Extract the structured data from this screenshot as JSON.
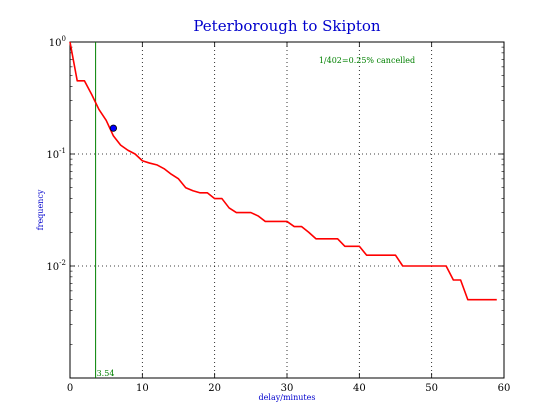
{
  "chart_data": {
    "type": "line",
    "title": "Peterborough to Skipton",
    "xlabel": "delay/minutes",
    "ylabel": "frequency",
    "xlim": [
      0,
      60
    ],
    "ylim": [
      0.001,
      1
    ],
    "yscale": "log",
    "grid": true,
    "x_ticks": [
      0,
      10,
      20,
      30,
      40,
      50,
      60
    ],
    "x_tick_labels": [
      "0",
      "10",
      "20",
      "30",
      "40",
      "50",
      "60"
    ],
    "y_tick_labels": [
      {
        "base": "10",
        "exp": "0",
        "value": 1
      },
      {
        "base": "10",
        "exp": "-1",
        "value": 0.1
      },
      {
        "base": "10",
        "exp": "-2",
        "value": 0.01
      }
    ],
    "series": [
      {
        "color": "#ff0000",
        "x": [
          0,
          1,
          2,
          3,
          4,
          5,
          6,
          7,
          8,
          9,
          10,
          11,
          12,
          13,
          14,
          15,
          16,
          17,
          18,
          19,
          20,
          21,
          22,
          23,
          24,
          25,
          26,
          27,
          28,
          29,
          30,
          31,
          32,
          33,
          34,
          35,
          36,
          37,
          38,
          39,
          40,
          41,
          42,
          43,
          44,
          45,
          46,
          47,
          48,
          49,
          50,
          51,
          52,
          53,
          54,
          55,
          56,
          57,
          58,
          59
        ],
        "y": [
          1.0,
          0.45,
          0.45,
          0.34,
          0.25,
          0.2,
          0.145,
          0.12,
          0.108,
          0.1,
          0.087,
          0.083,
          0.08,
          0.074,
          0.066,
          0.06,
          0.05,
          0.047,
          0.045,
          0.045,
          0.04,
          0.04,
          0.033,
          0.03,
          0.03,
          0.03,
          0.028,
          0.025,
          0.025,
          0.025,
          0.025,
          0.0225,
          0.0225,
          0.02,
          0.0175,
          0.0175,
          0.0175,
          0.0175,
          0.015,
          0.015,
          0.015,
          0.0125,
          0.0125,
          0.0125,
          0.0125,
          0.0125,
          0.01,
          0.01,
          0.01,
          0.01,
          0.01,
          0.01,
          0.01,
          0.0075,
          0.0075,
          0.005,
          0.005,
          0.005,
          0.005,
          0.005
        ]
      }
    ],
    "marker_point": {
      "x": 6,
      "y": 0.17,
      "color": "#0000ff"
    },
    "vline": {
      "x": 3.54,
      "label": "3.54",
      "color": "#008000"
    },
    "annotation": {
      "text": "1/402=0.25% cancelled",
      "color": "#008000"
    },
    "colors": {
      "title": "#0000cc",
      "axis_label": "#0000cc"
    }
  }
}
